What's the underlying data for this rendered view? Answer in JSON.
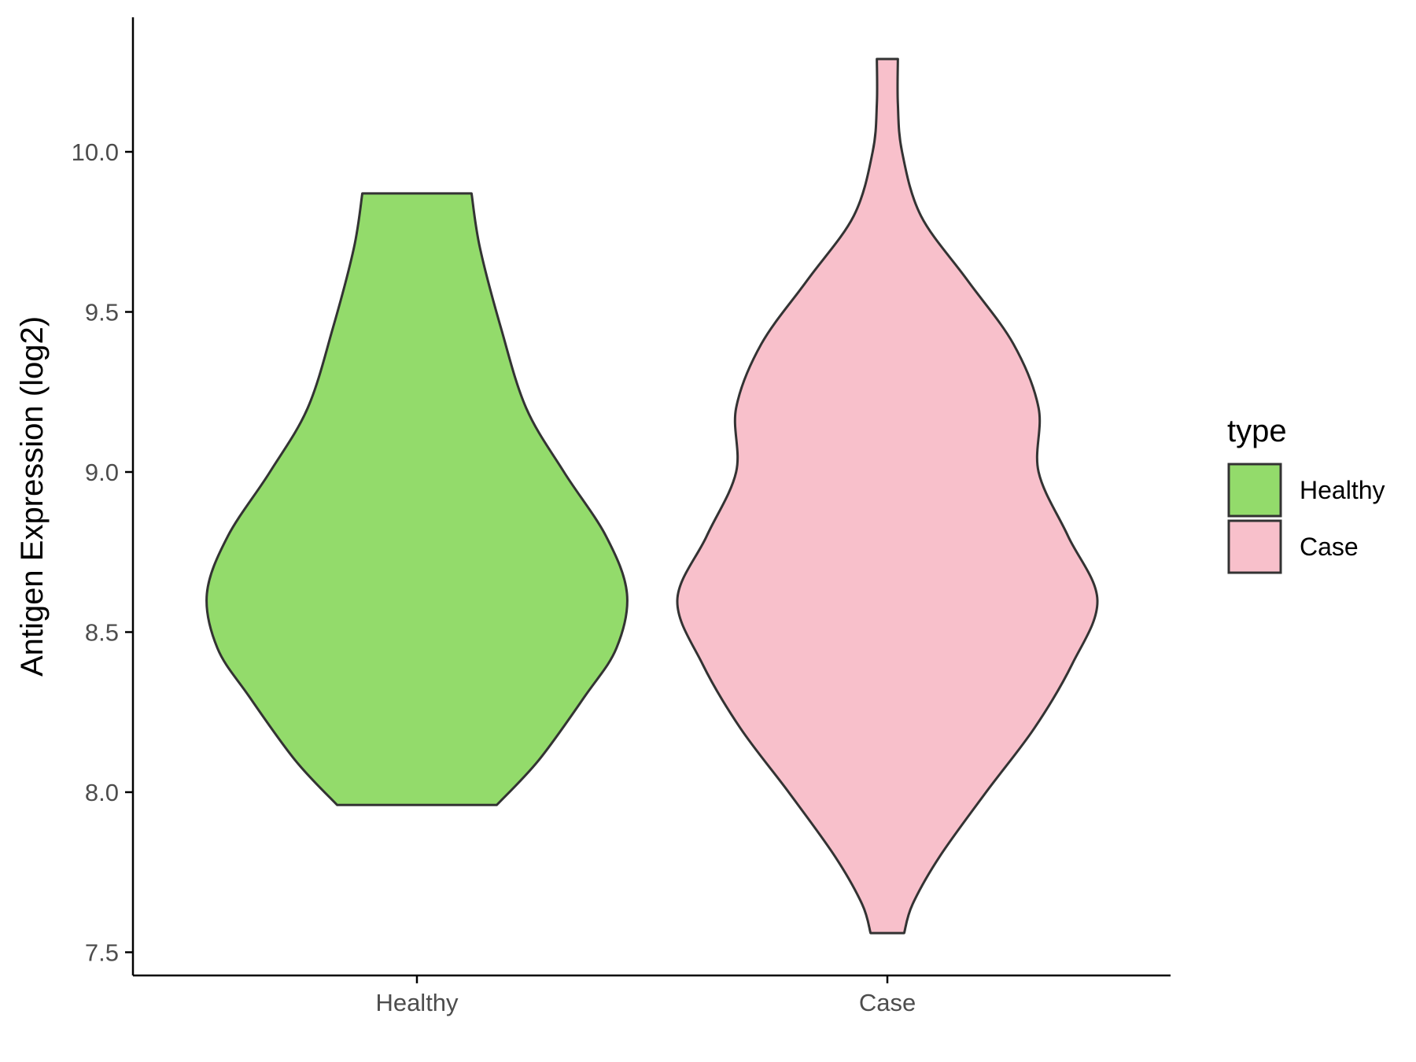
{
  "chart_data": {
    "type": "violin",
    "title": "",
    "xlabel": "",
    "ylabel": "Antigen Expression (log2)",
    "ylim": [
      7.45,
      10.45
    ],
    "yticks": [
      "7.5",
      "8.0",
      "8.5",
      "9.0",
      "9.5",
      "10.0"
    ],
    "categories": [
      "Healthy",
      "Case"
    ],
    "grid": false,
    "legend": {
      "title": "type",
      "placement": "right",
      "entries": [
        {
          "label": "Healthy",
          "color": "#93DB6B"
        },
        {
          "label": "Case",
          "color": "#F8C0CB"
        }
      ]
    },
    "outline_color": "#333333",
    "series": [
      {
        "category": "Healthy",
        "color": "#93DB6B",
        "min": 7.96,
        "max": 9.87,
        "density_profile": [
          {
            "y": 7.96,
            "w": 0.38
          },
          {
            "y": 8.1,
            "w": 0.58
          },
          {
            "y": 8.3,
            "w": 0.8
          },
          {
            "y": 8.45,
            "w": 0.95
          },
          {
            "y": 8.62,
            "w": 1.0
          },
          {
            "y": 8.8,
            "w": 0.9
          },
          {
            "y": 9.0,
            "w": 0.7
          },
          {
            "y": 9.2,
            "w": 0.52
          },
          {
            "y": 9.45,
            "w": 0.4
          },
          {
            "y": 9.7,
            "w": 0.3
          },
          {
            "y": 9.87,
            "w": 0.26
          }
        ]
      },
      {
        "category": "Case",
        "color": "#F8C0CB",
        "min": 7.56,
        "max": 10.29,
        "density_profile": [
          {
            "y": 7.56,
            "w": 0.08
          },
          {
            "y": 7.65,
            "w": 0.12
          },
          {
            "y": 7.8,
            "w": 0.25
          },
          {
            "y": 8.0,
            "w": 0.47
          },
          {
            "y": 8.2,
            "w": 0.7
          },
          {
            "y": 8.4,
            "w": 0.88
          },
          {
            "y": 8.6,
            "w": 1.0
          },
          {
            "y": 8.8,
            "w": 0.86
          },
          {
            "y": 9.0,
            "w": 0.72
          },
          {
            "y": 9.2,
            "w": 0.72
          },
          {
            "y": 9.4,
            "w": 0.6
          },
          {
            "y": 9.6,
            "w": 0.38
          },
          {
            "y": 9.8,
            "w": 0.16
          },
          {
            "y": 10.0,
            "w": 0.07
          },
          {
            "y": 10.15,
            "w": 0.05
          },
          {
            "y": 10.29,
            "w": 0.05
          }
        ]
      }
    ]
  }
}
